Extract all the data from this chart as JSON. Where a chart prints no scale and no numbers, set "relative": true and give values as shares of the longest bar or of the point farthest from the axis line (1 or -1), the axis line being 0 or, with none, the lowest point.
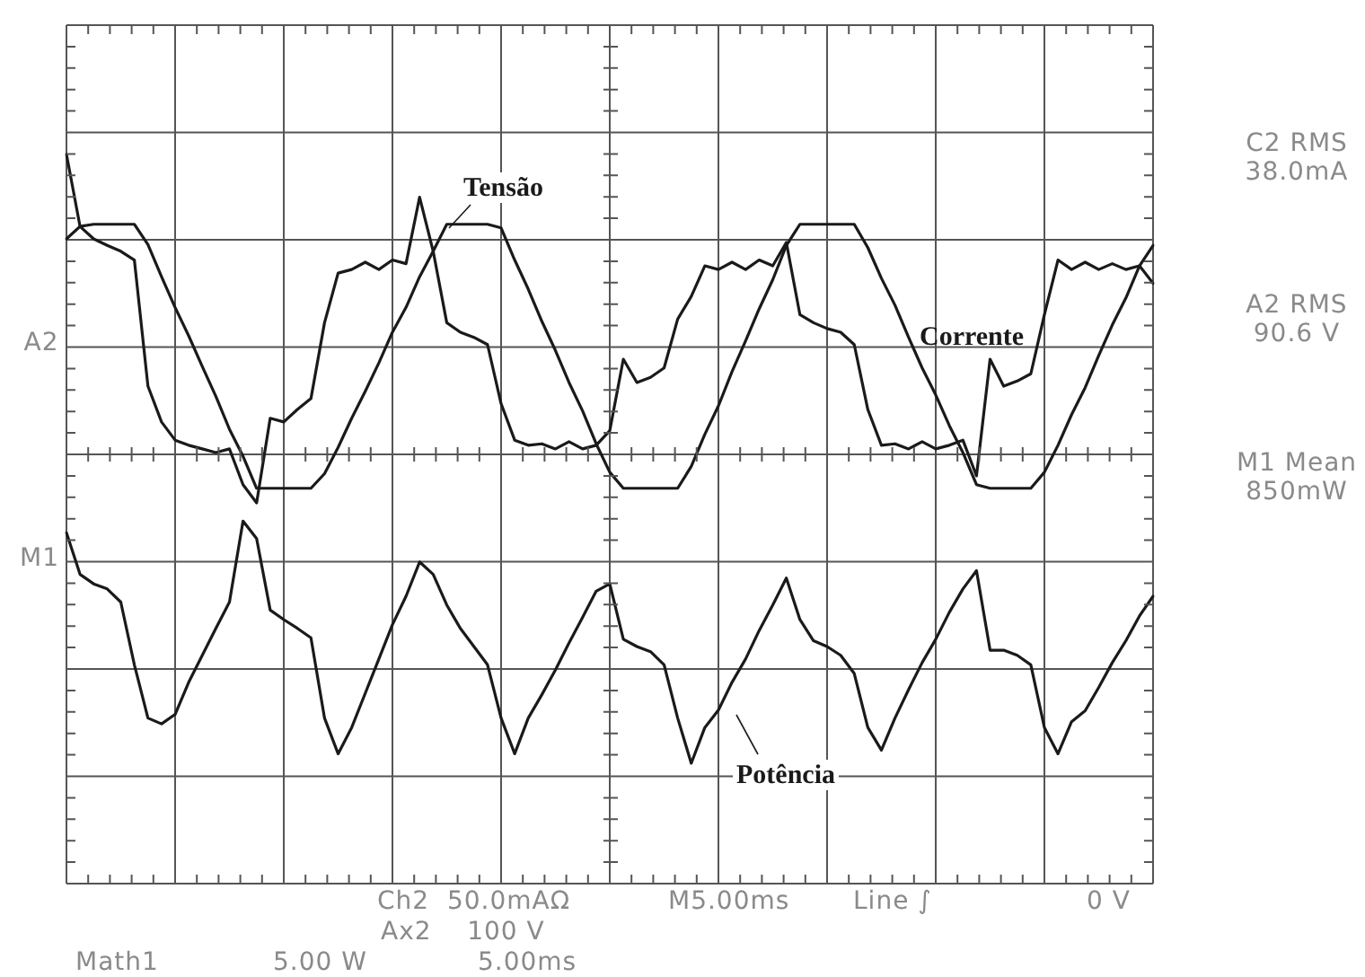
{
  "chart_data": {
    "type": "line",
    "relative": true,
    "grid": true,
    "legend": false,
    "marker": "none",
    "line_style": "solid",
    "categories": [
      null,
      null,
      null,
      null,
      null,
      null,
      null,
      null,
      null,
      null,
      null,
      null,
      null,
      null,
      null,
      null,
      null,
      null,
      null,
      null,
      null,
      null,
      null,
      null,
      null,
      null,
      null,
      null,
      null,
      null,
      null,
      null,
      null,
      null,
      null,
      null,
      null,
      null,
      null,
      null,
      null,
      null,
      null,
      null,
      null,
      null,
      null,
      null,
      null,
      null,
      null,
      null,
      null,
      null,
      null,
      null,
      null,
      null,
      null,
      null,
      null,
      null,
      null,
      null,
      null,
      null,
      null,
      null,
      null,
      null,
      null,
      null,
      null,
      null,
      null,
      null,
      null,
      null,
      null,
      null,
      null
    ],
    "series": [
      {
        "name": "Tensão",
        "color": "#1a1a1a",
        "values": [
          0.884,
          0.901,
          0.904,
          0.904,
          0.904,
          0.904,
          0.876,
          0.832,
          0.79,
          0.751,
          0.709,
          0.668,
          0.623,
          0.586,
          0.542,
          0.542,
          0.542,
          0.542,
          0.542,
          0.562,
          0.598,
          0.638,
          0.675,
          0.714,
          0.756,
          0.79,
          0.832,
          0.867,
          0.904,
          0.904,
          0.904,
          0.904,
          0.899,
          0.855,
          0.815,
          0.771,
          0.731,
          0.687,
          0.648,
          0.603,
          0.564,
          0.542,
          0.542,
          0.542,
          0.542,
          0.542,
          0.572,
          0.616,
          0.655,
          0.702,
          0.744,
          0.788,
          0.828,
          0.875,
          0.904,
          0.904,
          0.904,
          0.904,
          0.904,
          0.872,
          0.83,
          0.793,
          0.749,
          0.707,
          0.67,
          0.628,
          0.591,
          0.547,
          0.542,
          0.542,
          0.542,
          0.542,
          0.564,
          0.601,
          0.643,
          0.68,
          0.724,
          0.766,
          0.803,
          0.847,
          0.875
        ]
      },
      {
        "name": "Corrente",
        "color": "#1a1a1a",
        "values": [
          1.0,
          0.901,
          0.884,
          0.875,
          0.867,
          0.855,
          0.682,
          0.633,
          0.608,
          0.601,
          0.596,
          0.591,
          0.596,
          0.547,
          0.522,
          0.638,
          0.633,
          0.65,
          0.665,
          0.769,
          0.837,
          0.842,
          0.852,
          0.842,
          0.855,
          0.85,
          0.941,
          0.867,
          0.769,
          0.756,
          0.749,
          0.739,
          0.658,
          0.608,
          0.601,
          0.603,
          0.596,
          0.606,
          0.596,
          0.601,
          0.621,
          0.719,
          0.687,
          0.694,
          0.707,
          0.774,
          0.805,
          0.847,
          0.842,
          0.852,
          0.842,
          0.855,
          0.847,
          0.879,
          0.78,
          0.769,
          0.761,
          0.756,
          0.739,
          0.65,
          0.601,
          0.603,
          0.596,
          0.606,
          0.596,
          0.601,
          0.608,
          0.559,
          0.719,
          0.682,
          0.689,
          0.699,
          0.78,
          0.855,
          0.842,
          0.852,
          0.842,
          0.85,
          0.842,
          0.847,
          0.823
        ]
      },
      {
        "name": "Potência",
        "color": "#1a1a1a",
        "values": [
          0.481,
          0.424,
          0.411,
          0.404,
          0.386,
          0.3,
          0.227,
          0.219,
          0.232,
          0.276,
          0.313,
          0.35,
          0.386,
          0.497,
          0.473,
          0.375,
          0.362,
          0.35,
          0.337,
          0.227,
          0.178,
          0.214,
          0.261,
          0.308,
          0.355,
          0.394,
          0.441,
          0.424,
          0.382,
          0.35,
          0.325,
          0.3,
          0.227,
          0.178,
          0.227,
          0.259,
          0.293,
          0.33,
          0.365,
          0.401,
          0.411,
          0.335,
          0.325,
          0.318,
          0.3,
          0.227,
          0.165,
          0.214,
          0.238,
          0.276,
          0.308,
          0.347,
          0.382,
          0.419,
          0.362,
          0.333,
          0.325,
          0.313,
          0.288,
          0.214,
          0.183,
          0.227,
          0.266,
          0.303,
          0.335,
          0.372,
          0.404,
          0.429,
          0.32,
          0.32,
          0.313,
          0.3,
          0.214,
          0.178,
          0.222,
          0.237,
          0.269,
          0.303,
          0.333,
          0.367,
          0.394
        ]
      }
    ],
    "annotations": [
      "C2 RMS\n38.0mA",
      "A2 RMS\n90.6 V",
      "M1 Mean\n850mW",
      "A2",
      "M1",
      "Ch2  50.0mAΩ",
      "M5.00ms",
      "Line ∫",
      "0 V",
      "Ax2    100 V",
      "Math1",
      "5.00 W",
      "5.00ms"
    ]
  }
}
